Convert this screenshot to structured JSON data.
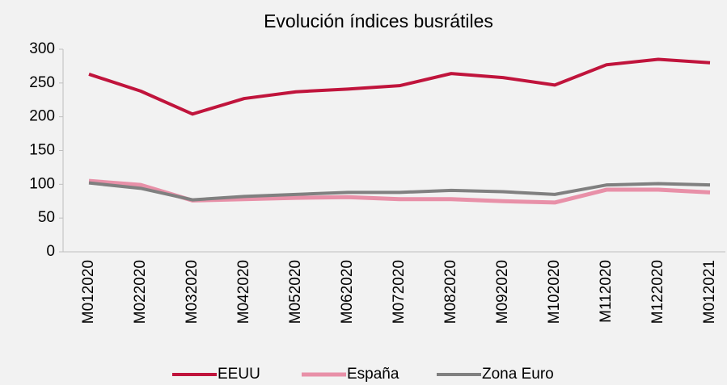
{
  "chart_data": {
    "type": "line",
    "title": "Evolución índices busrátiles",
    "categories": [
      "M012020",
      "M022020",
      "M032020",
      "M042020",
      "M052020",
      "M062020",
      "M072020",
      "M082020",
      "M092020",
      "M102020",
      "M112020",
      "M122020",
      "M012021"
    ],
    "series": [
      {
        "name": "EEUU",
        "color": "#c0143c",
        "values": [
          263,
          238,
          204,
          227,
          237,
          241,
          246,
          264,
          258,
          247,
          277,
          285,
          280
        ]
      },
      {
        "name": "España",
        "color": "#e890a8",
        "values": [
          105,
          99,
          76,
          78,
          80,
          81,
          78,
          78,
          75,
          73,
          92,
          92,
          88
        ]
      },
      {
        "name": "Zona Euro",
        "color": "#808080",
        "values": [
          102,
          94,
          77,
          82,
          85,
          88,
          88,
          91,
          89,
          85,
          99,
          101,
          99
        ]
      }
    ],
    "ylim": [
      0,
      300
    ],
    "yticks": [
      0,
      50,
      100,
      150,
      200,
      250,
      300
    ],
    "legend": "bottom"
  }
}
